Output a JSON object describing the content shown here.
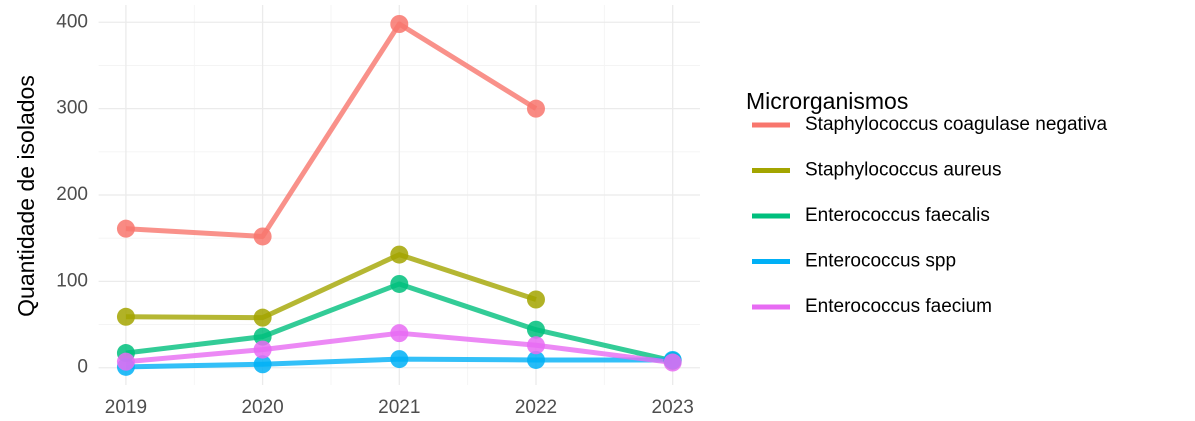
{
  "chart_data": {
    "type": "line",
    "y_label": "Quantidade de isolados",
    "legend_title": "Microrganismos",
    "legend_position": "right",
    "grid": true,
    "x": [
      2019,
      2020,
      2021,
      2022,
      2023
    ],
    "xlim": [
      2018.8,
      2023.2
    ],
    "xticks": [
      2019,
      2020,
      2021,
      2022,
      2023
    ],
    "ylim": [
      -20,
      420
    ],
    "yticks": [
      0,
      100,
      200,
      300,
      400
    ],
    "series": [
      {
        "name": "Staphylococcus coagulase negativa",
        "color": "#F8766D",
        "values": [
          161,
          152,
          398,
          300,
          null
        ]
      },
      {
        "name": "Staphylococcus aureus",
        "color": "#A3A500",
        "values": [
          59,
          58,
          131,
          79,
          null
        ]
      },
      {
        "name": "Enterococcus faecalis",
        "color": "#00BF7D",
        "values": [
          17,
          36,
          97,
          44,
          8
        ]
      },
      {
        "name": "Enterococcus spp",
        "color": "#00B0F6",
        "values": [
          1,
          4,
          10,
          9,
          9
        ]
      },
      {
        "name": "Enterococcus faecium",
        "color": "#E76BF3",
        "values": [
          7,
          21,
          40,
          26,
          6
        ]
      }
    ]
  }
}
